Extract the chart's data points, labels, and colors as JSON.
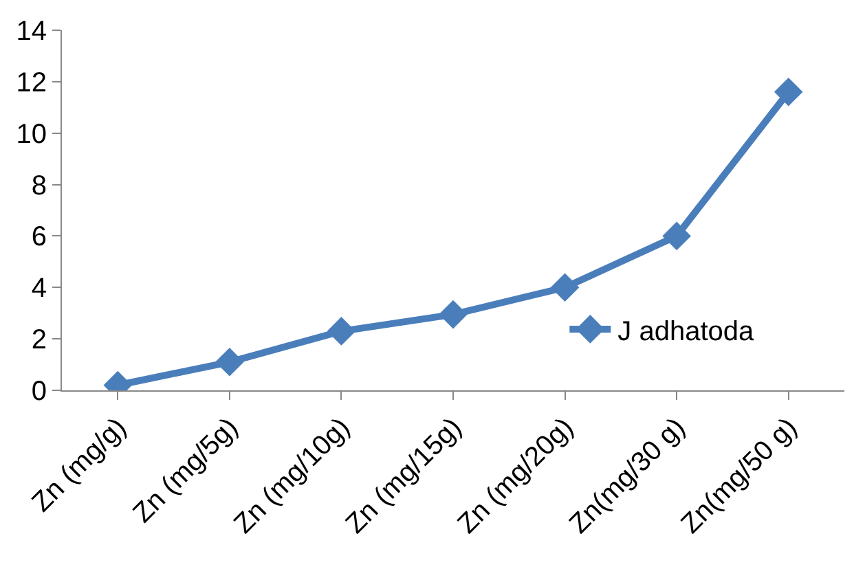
{
  "chart_data": {
    "type": "line",
    "categories": [
      "Zn (mg/g)",
      "Zn (mg/5g)",
      "Zn (mg/10g)",
      "Zn (mg/15g)",
      "Zn (mg/20g)",
      "Zn(mg/30 g)",
      "Zn(mg/50 g)"
    ],
    "series": [
      {
        "name": "J adhatoda",
        "color": "#4a7ebb",
        "values": [
          0.2,
          1.1,
          2.3,
          2.95,
          4.0,
          6.0,
          11.6
        ]
      }
    ],
    "ylim": [
      0,
      14
    ],
    "yticks": [
      0,
      2,
      4,
      6,
      8,
      10,
      12,
      14
    ],
    "grid": false,
    "legend": "bottom right",
    "marker": "diamond",
    "line_style": "solid"
  }
}
